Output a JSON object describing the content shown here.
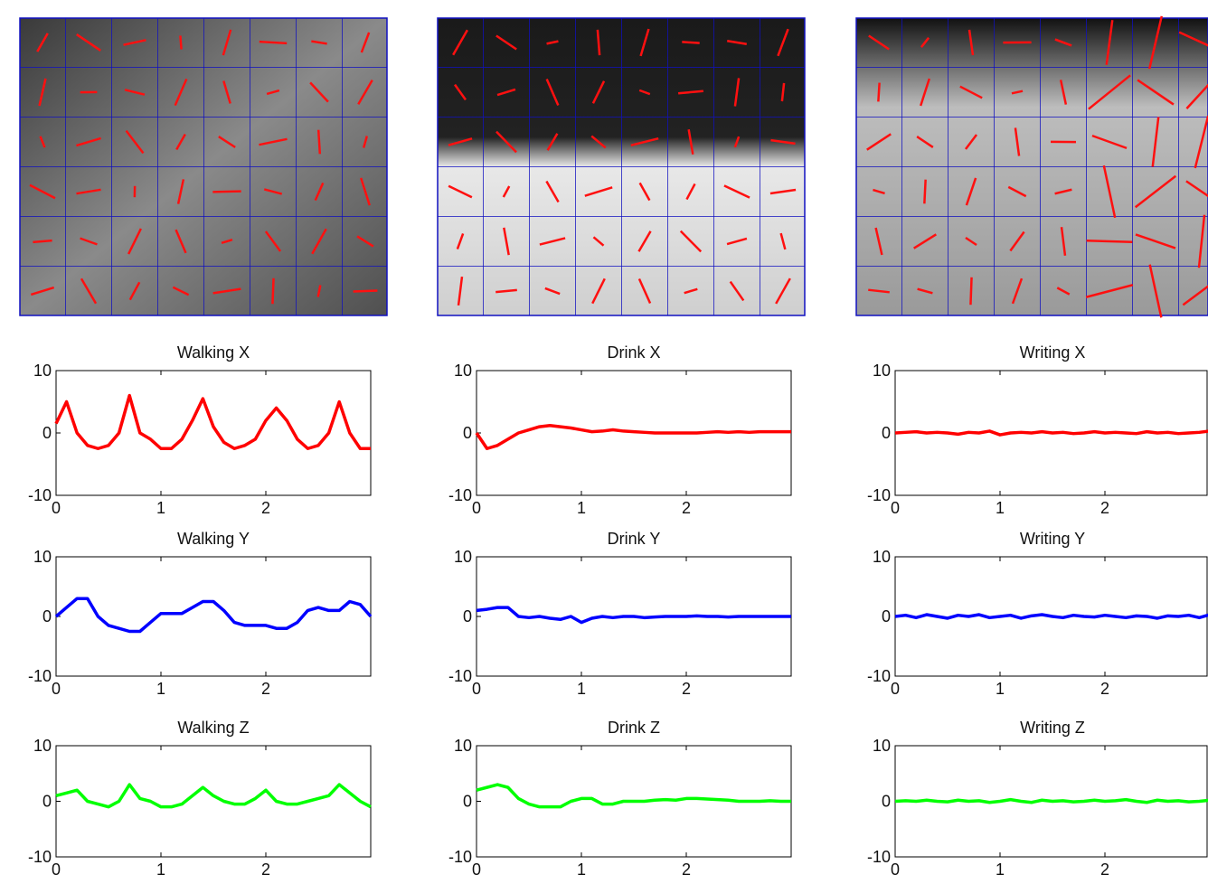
{
  "chart_data": [
    {
      "type": "line",
      "title": "Walking X",
      "x": [
        0,
        0.1,
        0.2,
        0.3,
        0.4,
        0.5,
        0.6,
        0.7,
        0.8,
        0.9,
        1,
        1.1,
        1.2,
        1.3,
        1.4,
        1.5,
        1.6,
        1.7,
        1.8,
        1.9,
        2,
        2.1,
        2.2,
        2.3,
        2.4,
        2.5,
        2.6,
        2.7,
        2.8,
        2.9,
        3
      ],
      "series": [
        {
          "color": "#ff0000",
          "values": [
            1.5,
            5,
            0,
            -2,
            -2.5,
            -2,
            0,
            6,
            0,
            -1,
            -2.5,
            -2.5,
            -1,
            2,
            5.5,
            1,
            -1.5,
            -2.5,
            -2,
            -1,
            2,
            4,
            2,
            -1,
            -2.5,
            -2,
            0,
            5,
            0,
            -2.5,
            -2.5
          ]
        }
      ],
      "xlim": [
        0,
        3
      ],
      "ylim": [
        -10,
        10
      ],
      "xticks": [
        0,
        1,
        2
      ],
      "yticks": [
        -10,
        0,
        10
      ]
    },
    {
      "type": "line",
      "title": "Walking Y",
      "x": [
        0,
        0.1,
        0.2,
        0.3,
        0.4,
        0.5,
        0.6,
        0.7,
        0.8,
        0.9,
        1,
        1.1,
        1.2,
        1.3,
        1.4,
        1.5,
        1.6,
        1.7,
        1.8,
        1.9,
        2,
        2.1,
        2.2,
        2.3,
        2.4,
        2.5,
        2.6,
        2.7,
        2.8,
        2.9,
        3
      ],
      "series": [
        {
          "color": "#0000ff",
          "values": [
            0,
            1.5,
            3,
            3,
            0,
            -1.5,
            -2,
            -2.5,
            -2.5,
            -1,
            0.5,
            0.5,
            0.5,
            1.5,
            2.5,
            2.5,
            1,
            -1,
            -1.5,
            -1.5,
            -1.5,
            -2,
            -2,
            -1,
            1,
            1.5,
            1,
            1,
            2.5,
            2,
            0
          ]
        }
      ],
      "xlim": [
        0,
        3
      ],
      "ylim": [
        -10,
        10
      ],
      "xticks": [
        0,
        1,
        2
      ],
      "yticks": [
        -10,
        0,
        10
      ]
    },
    {
      "type": "line",
      "title": "Walking Z",
      "x": [
        0,
        0.1,
        0.2,
        0.3,
        0.4,
        0.5,
        0.6,
        0.7,
        0.8,
        0.9,
        1,
        1.1,
        1.2,
        1.3,
        1.4,
        1.5,
        1.6,
        1.7,
        1.8,
        1.9,
        2,
        2.1,
        2.2,
        2.3,
        2.4,
        2.5,
        2.6,
        2.7,
        2.8,
        2.9,
        3
      ],
      "series": [
        {
          "color": "#00ff00",
          "values": [
            1,
            1.5,
            2,
            0,
            -0.5,
            -1,
            0,
            3,
            0.5,
            0,
            -1,
            -1,
            -0.5,
            1,
            2.5,
            1,
            0,
            -0.5,
            -0.5,
            0.5,
            2,
            0,
            -0.5,
            -0.5,
            0,
            0.5,
            1,
            3,
            1.5,
            0,
            -1
          ]
        }
      ],
      "xlim": [
        0,
        3
      ],
      "ylim": [
        -10,
        10
      ],
      "xticks": [
        0,
        1,
        2
      ],
      "yticks": [
        -10,
        0,
        10
      ]
    },
    {
      "type": "line",
      "title": "Drink X",
      "x": [
        0,
        0.1,
        0.2,
        0.3,
        0.4,
        0.5,
        0.6,
        0.7,
        0.8,
        0.9,
        1,
        1.1,
        1.2,
        1.3,
        1.4,
        1.5,
        1.6,
        1.7,
        1.8,
        1.9,
        2,
        2.1,
        2.2,
        2.3,
        2.4,
        2.5,
        2.6,
        2.7,
        2.8,
        2.9,
        3
      ],
      "series": [
        {
          "color": "#ff0000",
          "values": [
            0,
            -2.5,
            -2,
            -1,
            0,
            0.5,
            1,
            1.2,
            1,
            0.8,
            0.5,
            0.2,
            0.3,
            0.5,
            0.3,
            0.2,
            0.1,
            0,
            0,
            0,
            0,
            0,
            0.1,
            0.2,
            0.1,
            0.2,
            0.1,
            0.2,
            0.2,
            0.2,
            0.2
          ]
        }
      ],
      "xlim": [
        0,
        3
      ],
      "ylim": [
        -10,
        10
      ],
      "xticks": [
        0,
        1,
        2
      ],
      "yticks": [
        -10,
        0,
        10
      ]
    },
    {
      "type": "line",
      "title": "Drink Y",
      "x": [
        0,
        0.1,
        0.2,
        0.3,
        0.4,
        0.5,
        0.6,
        0.7,
        0.8,
        0.9,
        1,
        1.1,
        1.2,
        1.3,
        1.4,
        1.5,
        1.6,
        1.7,
        1.8,
        1.9,
        2,
        2.1,
        2.2,
        2.3,
        2.4,
        2.5,
        2.6,
        2.7,
        2.8,
        2.9,
        3
      ],
      "series": [
        {
          "color": "#0000ff",
          "values": [
            1,
            1.2,
            1.5,
            1.5,
            0,
            -0.2,
            0,
            -0.3,
            -0.5,
            0,
            -1,
            -0.3,
            0,
            -0.2,
            0,
            0,
            -0.2,
            -0.1,
            0,
            0,
            0,
            0.1,
            0,
            0,
            -0.1,
            0,
            0,
            0,
            0,
            0,
            0
          ]
        }
      ],
      "xlim": [
        0,
        3
      ],
      "ylim": [
        -10,
        10
      ],
      "xticks": [
        0,
        1,
        2
      ],
      "yticks": [
        -10,
        0,
        10
      ]
    },
    {
      "type": "line",
      "title": "Drink Z",
      "x": [
        0,
        0.1,
        0.2,
        0.3,
        0.4,
        0.5,
        0.6,
        0.7,
        0.8,
        0.9,
        1,
        1.1,
        1.2,
        1.3,
        1.4,
        1.5,
        1.6,
        1.7,
        1.8,
        1.9,
        2,
        2.1,
        2.2,
        2.3,
        2.4,
        2.5,
        2.6,
        2.7,
        2.8,
        2.9,
        3
      ],
      "series": [
        {
          "color": "#00ff00",
          "values": [
            2,
            2.5,
            3,
            2.5,
            0.5,
            -0.5,
            -1,
            -1,
            -1,
            0,
            0.5,
            0.5,
            -0.5,
            -0.5,
            0,
            0,
            0,
            0.2,
            0.3,
            0.2,
            0.5,
            0.5,
            0.4,
            0.3,
            0.2,
            0,
            0,
            0,
            0.1,
            0,
            0
          ]
        }
      ],
      "xlim": [
        0,
        3
      ],
      "ylim": [
        -10,
        10
      ],
      "xticks": [
        0,
        1,
        2
      ],
      "yticks": [
        -10,
        0,
        10
      ]
    },
    {
      "type": "line",
      "title": "Writing X",
      "x": [
        0,
        0.1,
        0.2,
        0.3,
        0.4,
        0.5,
        0.6,
        0.7,
        0.8,
        0.9,
        1,
        1.1,
        1.2,
        1.3,
        1.4,
        1.5,
        1.6,
        1.7,
        1.8,
        1.9,
        2,
        2.1,
        2.2,
        2.3,
        2.4,
        2.5,
        2.6,
        2.7,
        2.8,
        2.9,
        3
      ],
      "series": [
        {
          "color": "#ff0000",
          "values": [
            0,
            0.1,
            0.2,
            0,
            0.1,
            0,
            -0.2,
            0.1,
            0,
            0.3,
            -0.3,
            0,
            0.1,
            0,
            0.2,
            0,
            0.1,
            -0.1,
            0,
            0.2,
            0,
            0.1,
            0,
            -0.1,
            0.2,
            0,
            0.1,
            -0.1,
            0,
            0.1,
            0.3
          ]
        }
      ],
      "xlim": [
        0,
        3
      ],
      "ylim": [
        -10,
        10
      ],
      "xticks": [
        0,
        1,
        2
      ],
      "yticks": [
        -10,
        0,
        10
      ]
    },
    {
      "type": "line",
      "title": "Writing Y",
      "x": [
        0,
        0.1,
        0.2,
        0.3,
        0.4,
        0.5,
        0.6,
        0.7,
        0.8,
        0.9,
        1,
        1.1,
        1.2,
        1.3,
        1.4,
        1.5,
        1.6,
        1.7,
        1.8,
        1.9,
        2,
        2.1,
        2.2,
        2.3,
        2.4,
        2.5,
        2.6,
        2.7,
        2.8,
        2.9,
        3
      ],
      "series": [
        {
          "color": "#0000ff",
          "values": [
            0,
            0.2,
            -0.2,
            0.3,
            0,
            -0.3,
            0.2,
            0,
            0.3,
            -0.2,
            0,
            0.2,
            -0.3,
            0.1,
            0.3,
            0,
            -0.2,
            0.2,
            0,
            -0.1,
            0.2,
            0,
            -0.2,
            0.1,
            0,
            -0.3,
            0.1,
            0,
            0.2,
            -0.2,
            0.3
          ]
        }
      ],
      "xlim": [
        0,
        3
      ],
      "ylim": [
        -10,
        10
      ],
      "xticks": [
        0,
        1,
        2
      ],
      "yticks": [
        -10,
        0,
        10
      ]
    },
    {
      "type": "line",
      "title": "Writing Z",
      "x": [
        0,
        0.1,
        0.2,
        0.3,
        0.4,
        0.5,
        0.6,
        0.7,
        0.8,
        0.9,
        1,
        1.1,
        1.2,
        1.3,
        1.4,
        1.5,
        1.6,
        1.7,
        1.8,
        1.9,
        2,
        2.1,
        2.2,
        2.3,
        2.4,
        2.5,
        2.6,
        2.7,
        2.8,
        2.9,
        3
      ],
      "series": [
        {
          "color": "#00ff00",
          "values": [
            0,
            0.1,
            0,
            0.2,
            0,
            -0.1,
            0.2,
            0,
            0.1,
            -0.2,
            0,
            0.3,
            0,
            -0.2,
            0.2,
            0,
            0.1,
            -0.1,
            0,
            0.2,
            0,
            0.1,
            0.3,
            0,
            -0.2,
            0.2,
            0,
            0.1,
            -0.1,
            0,
            0.2
          ]
        }
      ],
      "xlim": [
        0,
        3
      ],
      "ylim": [
        -10,
        10
      ],
      "xticks": [
        0,
        1,
        2
      ],
      "yticks": [
        -10,
        0,
        10
      ]
    }
  ]
}
